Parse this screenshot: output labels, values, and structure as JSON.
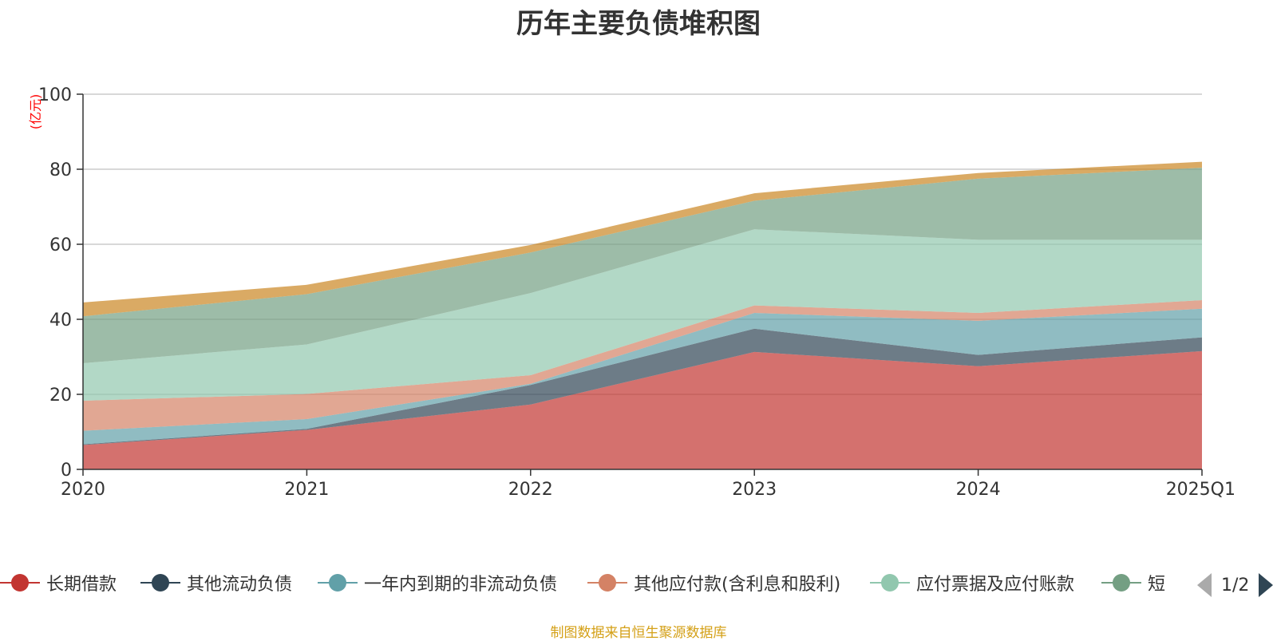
{
  "chart_data": {
    "type": "area",
    "stacked": true,
    "title": "历年主要负债堆积图",
    "unit_label": "(亿元)",
    "x": [
      "2020",
      "2021",
      "2022",
      "2023",
      "2024",
      "2025Q1"
    ],
    "ylim": [
      0,
      100
    ],
    "yticks": [
      "0",
      "20",
      "40",
      "60",
      "80",
      "100"
    ],
    "grid": true,
    "legend_position": "bottom",
    "series": [
      {
        "name": "长期借款",
        "color": "#c23531",
        "values": [
          6.5,
          10.5,
          17.3,
          31.3,
          27.5,
          31.5
        ]
      },
      {
        "name": "其他流动负债",
        "color": "#2f4554",
        "values": [
          0.2,
          0.3,
          5.2,
          6.2,
          3.0,
          3.7
        ]
      },
      {
        "name": "一年内到期的非流动负债",
        "color": "#61a0a8",
        "values": [
          3.6,
          2.6,
          0.3,
          4.2,
          9.1,
          7.6
        ]
      },
      {
        "name": "其他应付款(含利息和股利)",
        "color": "#d48265",
        "values": [
          8.0,
          6.7,
          2.3,
          2.0,
          2.1,
          2.3
        ]
      },
      {
        "name": "应付票据及应付账款",
        "color": "#91c7ae",
        "values": [
          10.0,
          13.2,
          21.9,
          20.3,
          19.5,
          16.1
        ]
      },
      {
        "name": "短",
        "color": "#749f83",
        "values": [
          12.5,
          13.4,
          10.8,
          7.6,
          16.3,
          19.2
        ]
      },
      {
        "name": "",
        "color": "#ca8622",
        "values": [
          3.7,
          2.5,
          2.0,
          2.0,
          1.5,
          1.6
        ]
      }
    ]
  },
  "legend": {
    "items": [
      "长期借款",
      "其他流动负债",
      "一年内到期的非流动负债",
      "其他应付款(含利息和股利)",
      "应付票据及应付账款",
      "短"
    ],
    "page_indicator": "1/2"
  },
  "footer": {
    "source": "制图数据来自恒生聚源数据库"
  }
}
